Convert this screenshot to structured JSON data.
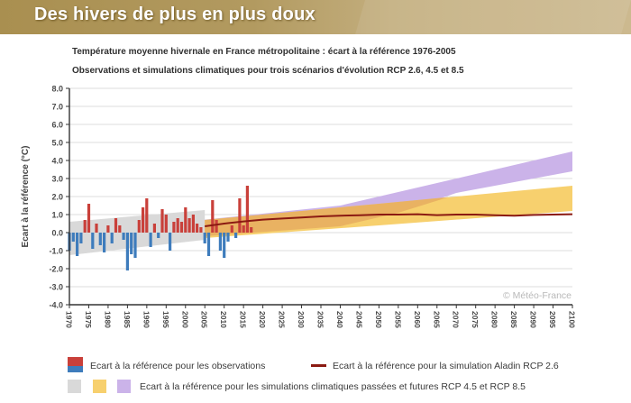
{
  "banner": {
    "title": "Des hivers de plus en plus doux"
  },
  "titles": {
    "line1": "Température moyenne hivernale en France métropolitaine : écart à la référence 1976-2005",
    "line2": "Observations et simulations climatiques pour trois scénarios d'évolution RCP 2.6, 4.5 et 8.5"
  },
  "chart_data": {
    "type": "bar",
    "title": "Température moyenne hivernale en France métropolitaine : écart à la référence 1976-2005",
    "subtitle": "Observations et simulations climatiques pour trois scénarios d'évolution RCP 2.6, 4.5 et 8.5",
    "ylabel": "Ecart à la référence (°C)",
    "watermark": "© Météo-France",
    "xlim": [
      1970,
      2100
    ],
    "ylim": [
      -4,
      8
    ],
    "x_ticks": [
      1970,
      1975,
      1980,
      1985,
      1990,
      1995,
      2000,
      2005,
      2010,
      2015,
      2020,
      2025,
      2030,
      2035,
      2040,
      2045,
      2050,
      2055,
      2060,
      2065,
      2070,
      2075,
      2080,
      2085,
      2090,
      2095,
      2100
    ],
    "y_ticks": [
      -4,
      -3,
      -2,
      -1,
      0,
      1,
      2,
      3,
      4,
      5,
      6,
      7,
      8
    ],
    "observations": {
      "name": "Ecart à la référence pour les observations",
      "positive_color": "#c9403a",
      "negative_color": "#3e7cbc",
      "years": [
        1970,
        1971,
        1972,
        1973,
        1974,
        1975,
        1976,
        1977,
        1978,
        1979,
        1980,
        1981,
        1982,
        1983,
        1984,
        1985,
        1986,
        1987,
        1988,
        1989,
        1990,
        1991,
        1992,
        1993,
        1994,
        1995,
        1996,
        1997,
        1998,
        1999,
        2000,
        2001,
        2002,
        2003,
        2004,
        2005,
        2006,
        2007,
        2008,
        2009,
        2010,
        2011,
        2012,
        2013,
        2014,
        2015,
        2016,
        2017
      ],
      "values": [
        -1.0,
        -0.5,
        -1.3,
        -0.6,
        0.7,
        1.6,
        -0.9,
        0.5,
        -0.7,
        -1.1,
        0.4,
        -0.6,
        0.8,
        0.4,
        -0.4,
        -2.1,
        -1.2,
        -1.4,
        0.7,
        1.4,
        1.9,
        -0.8,
        0.5,
        -0.3,
        1.3,
        1.0,
        -1.0,
        0.6,
        0.8,
        0.6,
        1.4,
        0.8,
        1.0,
        0.5,
        0.3,
        -0.6,
        -1.3,
        1.8,
        0.7,
        -1.0,
        -1.4,
        -0.5,
        0.4,
        -0.3,
        1.9,
        0.4,
        2.6,
        0.3
      ]
    },
    "aladin_rcp26": {
      "name": "Ecart à la référence pour la simulation Aladin RCP 2.6",
      "color": "#8b1a12",
      "x": [
        2005,
        2010,
        2015,
        2020,
        2025,
        2030,
        2035,
        2040,
        2045,
        2050,
        2055,
        2060,
        2065,
        2070,
        2075,
        2080,
        2085,
        2090,
        2095,
        2100
      ],
      "y": [
        0.35,
        0.5,
        0.62,
        0.72,
        0.78,
        0.84,
        0.9,
        0.94,
        0.96,
        1.0,
        1.0,
        1.02,
        0.97,
        1.0,
        1.0,
        0.96,
        0.94,
        0.98,
        1.0,
        1.02
      ]
    },
    "bands": [
      {
        "name": "simulations-passees-gris",
        "color": "#d9d9d9",
        "points": [
          [
            1970,
            0.6
          ],
          [
            2005,
            1.25
          ],
          [
            2005,
            -0.4
          ],
          [
            1970,
            -1.25
          ]
        ]
      },
      {
        "name": "rcp85-violet",
        "color": "#cbb3e9",
        "top": [
          [
            2005,
            0.72
          ],
          [
            2040,
            1.5
          ],
          [
            2060,
            2.5
          ],
          [
            2080,
            3.5
          ],
          [
            2100,
            4.5
          ]
        ],
        "bottom": [
          [
            2005,
            -0.2
          ],
          [
            2040,
            0.35
          ],
          [
            2055,
            1.1
          ],
          [
            2070,
            2.2
          ],
          [
            2100,
            3.4
          ]
        ]
      },
      {
        "name": "rcp45-jaune",
        "color": "#f7d06e",
        "top": [
          [
            2005,
            0.7
          ],
          [
            2050,
            1.6
          ],
          [
            2100,
            2.6
          ]
        ],
        "bottom": [
          [
            2005,
            -0.3
          ],
          [
            2050,
            0.4
          ],
          [
            2100,
            1.2
          ]
        ]
      },
      {
        "name": "recouvrement-orange",
        "color": "#e9b262",
        "points": [
          [
            2005,
            0.7
          ],
          [
            2050,
            1.6
          ],
          [
            2068,
            1.97
          ],
          [
            2055,
            1.1
          ],
          [
            2040,
            0.35
          ],
          [
            2005,
            -0.2
          ]
        ]
      }
    ]
  },
  "legend": {
    "observations_label": "Ecart à la référence pour les observations",
    "aladin_label": "Ecart à la référence pour la simulation Aladin RCP 2.6",
    "simulations_label": "Ecart à la référence pour les simulations climatiques passées et futures RCP 4.5 et RCP 8.5",
    "swatches": {
      "red": "#c9403a",
      "blue": "#3e7cbc",
      "line": "#8b1a12",
      "gray": "#d9d9d9",
      "yellow": "#f7d06e",
      "purple": "#cbb3e9"
    }
  }
}
